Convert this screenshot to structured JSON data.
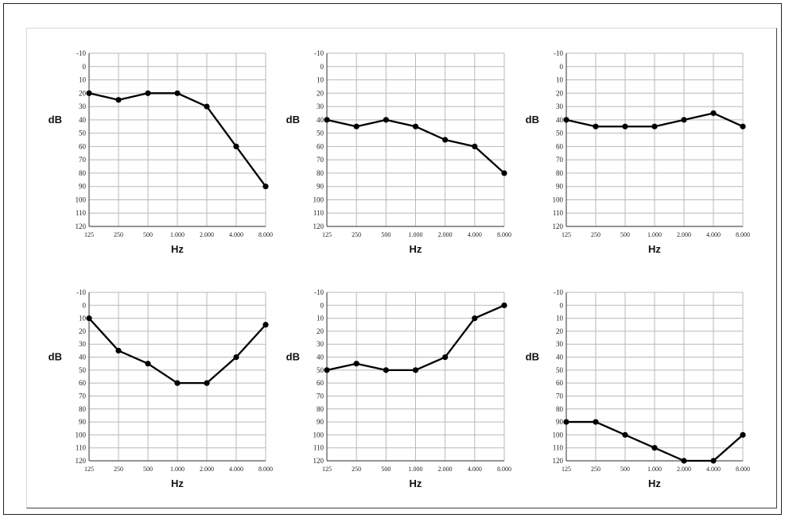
{
  "chart_data": [
    {
      "type": "line",
      "xlabel": "Hz",
      "ylabel": "dB",
      "categories": [
        "125",
        "250",
        "500",
        "1.000",
        "2.000",
        "4.000",
        "8.000"
      ],
      "yticks": [
        "-10",
        "0",
        "10",
        "20",
        "30",
        "40",
        "50",
        "60",
        "70",
        "80",
        "90",
        "100",
        "110",
        "120"
      ],
      "ylim": [
        -10,
        120
      ],
      "y_inverted": true,
      "grid": true,
      "values": [
        20,
        25,
        20,
        20,
        30,
        60,
        90
      ]
    },
    {
      "type": "line",
      "xlabel": "Hz",
      "ylabel": "dB",
      "categories": [
        "125",
        "250",
        "500",
        "1.000",
        "2.000",
        "4.000",
        "8.000"
      ],
      "yticks": [
        "-10",
        "0",
        "10",
        "20",
        "30",
        "40",
        "50",
        "60",
        "70",
        "80",
        "90",
        "100",
        "110",
        "120"
      ],
      "ylim": [
        -10,
        120
      ],
      "y_inverted": true,
      "grid": true,
      "values": [
        40,
        45,
        40,
        45,
        55,
        60,
        80
      ]
    },
    {
      "type": "line",
      "xlabel": "Hz",
      "ylabel": "dB",
      "categories": [
        "125",
        "250",
        "500",
        "1.000",
        "2.000",
        "4.000",
        "8.000"
      ],
      "yticks": [
        "-10",
        "0",
        "10",
        "20",
        "30",
        "40",
        "50",
        "60",
        "70",
        "80",
        "90",
        "100",
        "110",
        "120"
      ],
      "ylim": [
        -10,
        120
      ],
      "y_inverted": true,
      "grid": true,
      "values": [
        40,
        45,
        45,
        45,
        40,
        35,
        45
      ]
    },
    {
      "type": "line",
      "xlabel": "Hz",
      "ylabel": "dB",
      "categories": [
        "125",
        "250",
        "500",
        "1.000",
        "2.000",
        "4.000",
        "8.000"
      ],
      "yticks": [
        "-10",
        "0",
        "10",
        "20",
        "30",
        "40",
        "50",
        "60",
        "70",
        "80",
        "90",
        "100",
        "110",
        "120"
      ],
      "ylim": [
        -10,
        120
      ],
      "y_inverted": true,
      "grid": true,
      "values": [
        10,
        35,
        45,
        60,
        60,
        40,
        15
      ]
    },
    {
      "type": "line",
      "xlabel": "Hz",
      "ylabel": "dB",
      "categories": [
        "125",
        "250",
        "500",
        "1.000",
        "2.000",
        "4.000",
        "8.000"
      ],
      "yticks": [
        "-10",
        "0",
        "10",
        "20",
        "30",
        "40",
        "50",
        "60",
        "70",
        "80",
        "90",
        "100",
        "110",
        "120"
      ],
      "ylim": [
        -10,
        120
      ],
      "y_inverted": true,
      "grid": true,
      "values": [
        50,
        45,
        50,
        50,
        40,
        10,
        0
      ]
    },
    {
      "type": "line",
      "xlabel": "Hz",
      "ylabel": "dB",
      "categories": [
        "125",
        "250",
        "500",
        "1.000",
        "2.000",
        "4.000",
        "8.000"
      ],
      "yticks": [
        "-10",
        "0",
        "10",
        "20",
        "30",
        "40",
        "50",
        "60",
        "70",
        "80",
        "90",
        "100",
        "110",
        "120"
      ],
      "ylim": [
        -10,
        120
      ],
      "y_inverted": true,
      "grid": true,
      "values": [
        90,
        90,
        100,
        110,
        120,
        120,
        100
      ]
    }
  ]
}
